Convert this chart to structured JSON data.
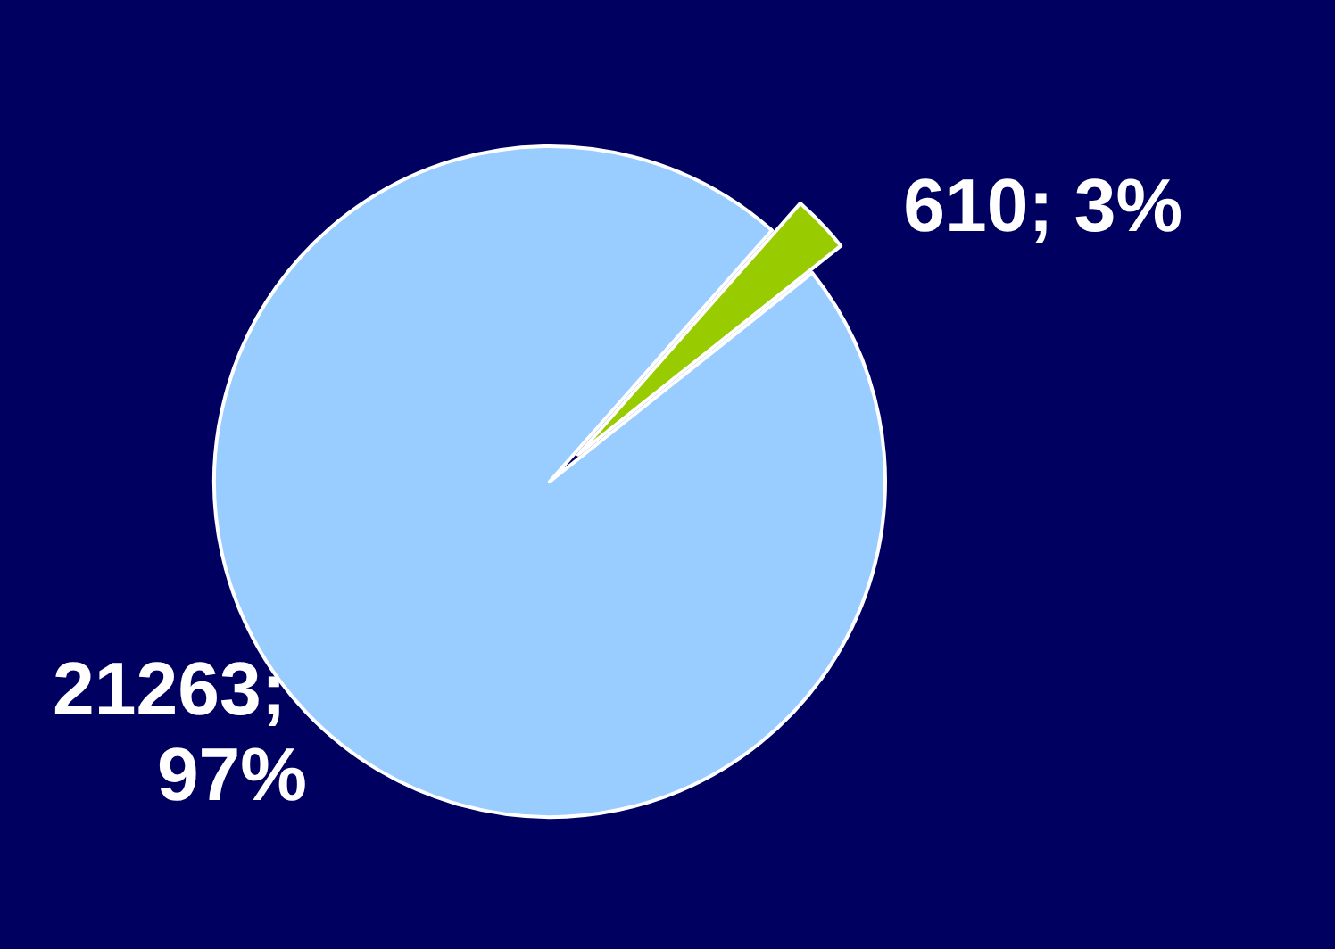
{
  "chart_data": {
    "type": "pie",
    "categories": [
      null,
      null
    ],
    "values": [
      21263,
      610
    ],
    "colors": [
      "#99ccff",
      "#99cc00"
    ],
    "value_labels": [
      "21263; 97%",
      "610; 3%"
    ]
  }
}
